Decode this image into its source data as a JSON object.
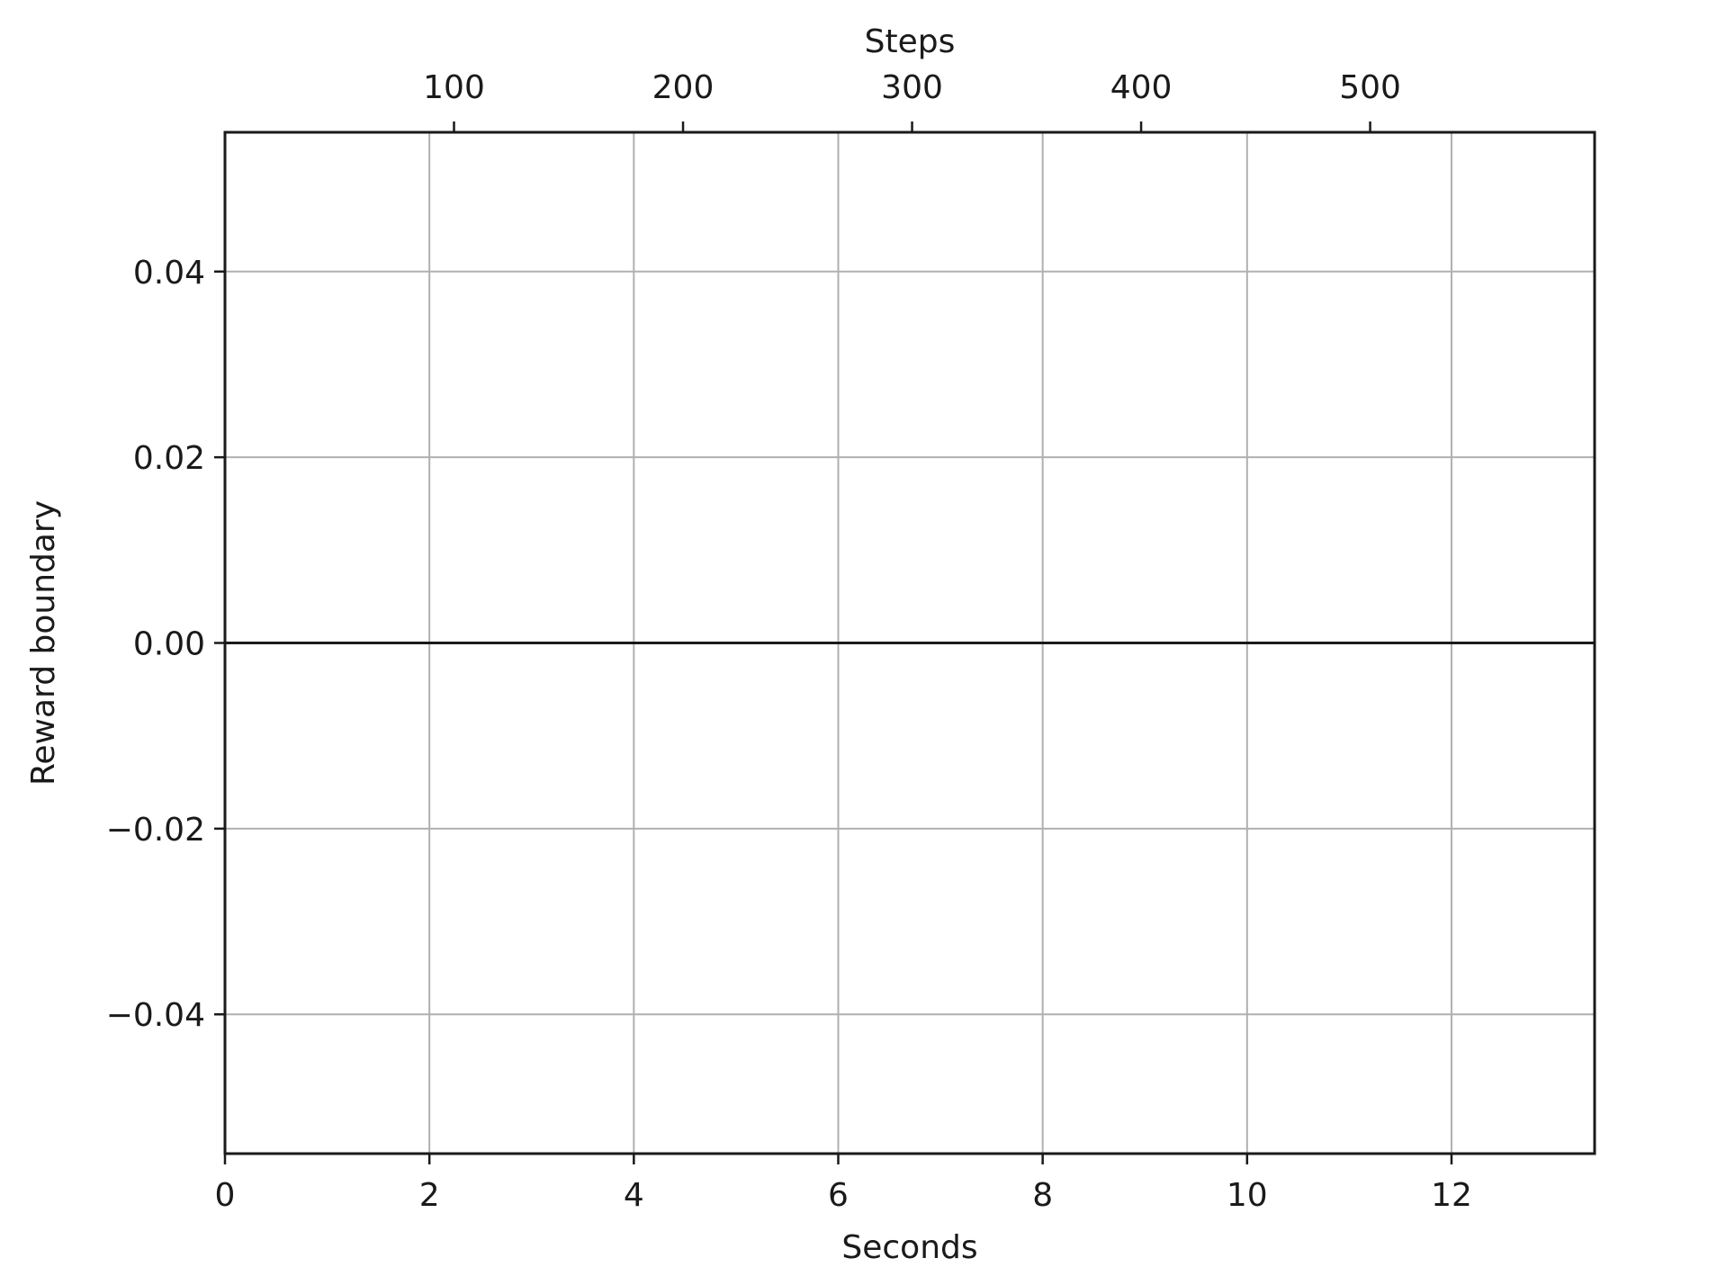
{
  "chart_data": {
    "type": "line",
    "title": "",
    "xlabel": "Seconds",
    "ylabel": "Reward boundary",
    "secondary_xlabel": "Steps",
    "xlim": [
      0,
      13.4
    ],
    "ylim": [
      -0.055,
      0.055
    ],
    "x_ticks": [
      0,
      2,
      4,
      6,
      8,
      10,
      12
    ],
    "x_tick_labels": [
      "0",
      "2",
      "4",
      "6",
      "8",
      "10",
      "12"
    ],
    "y_ticks": [
      0.04,
      0.02,
      0.0,
      -0.02,
      -0.04
    ],
    "y_tick_labels": [
      "0.04",
      "0.02",
      "0.00",
      "−0.02",
      "−0.04"
    ],
    "secondary_x_ticks": [
      100,
      200,
      300,
      400,
      500
    ],
    "secondary_x_tick_labels": [
      "100",
      "200",
      "300",
      "400",
      "500"
    ],
    "secondary_xlim": [
      0,
      598
    ],
    "grid": true,
    "series": [
      {
        "x": [
          0,
          13.4
        ],
        "y": [
          0.0,
          0.0
        ]
      }
    ]
  }
}
